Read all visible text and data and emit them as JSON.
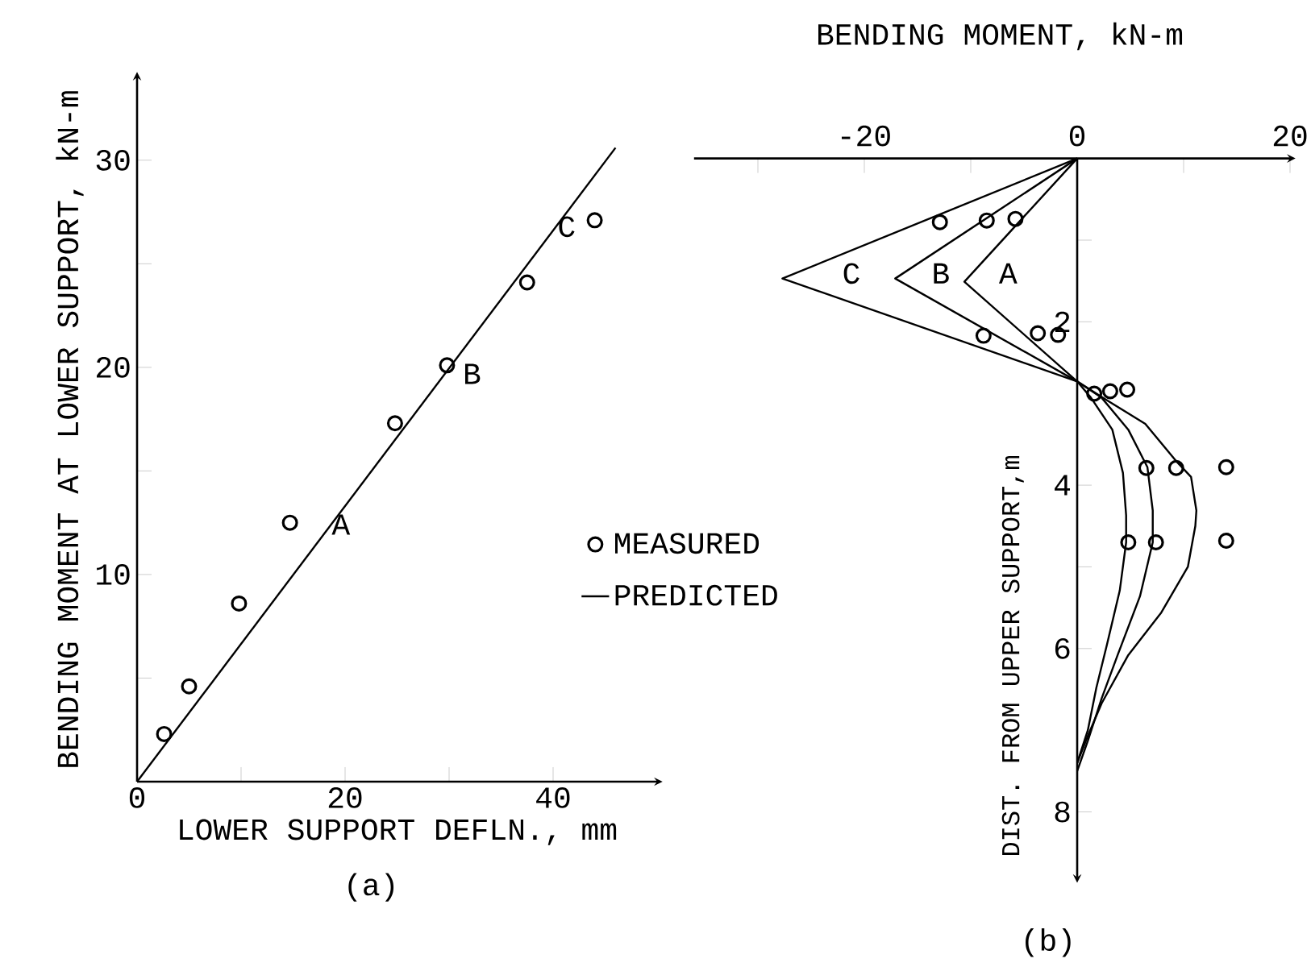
{
  "chart_data": [
    {
      "type": "scatter",
      "xlabel": "LOWER SUPPORT DEFLN., mm",
      "ylabel": "BENDING MOMENT AT LOWER SUPPORT, kN-m",
      "xlim": [
        0,
        50
      ],
      "ylim": [
        0,
        34
      ],
      "xticks": [
        0,
        {
          "value": 10,
          "label": null
        },
        20,
        {
          "value": 30,
          "label": null
        },
        40
      ],
      "yticks": [
        {
          "value": 5,
          "label": null
        },
        10,
        {
          "value": 15,
          "label": null
        },
        20,
        {
          "value": 25,
          "label": null
        },
        30
      ],
      "legend": "right",
      "series": [
        {
          "name": "MEASURED",
          "color": "#000000",
          "marker": "circle",
          "x": [
            2.6,
            5.0,
            9.8,
            14.7,
            24.8,
            29.8,
            37.5,
            44.0
          ],
          "values": [
            2.3,
            4.6,
            8.6,
            12.5,
            17.3,
            20.1,
            24.1,
            27.1
          ]
        },
        {
          "type": "line",
          "name": "PREDICTED",
          "color": "#000000",
          "x": [
            0,
            46
          ],
          "values": [
            0,
            30.6
          ]
        }
      ],
      "annotations": [
        "A",
        "B",
        "C",
        "(a)"
      ]
    },
    {
      "type": "line",
      "xlabel": "BENDING MOMENT, kN-m",
      "ylabel": "DIST. FROM UPPER SUPPORT,m",
      "xlim": [
        -36,
        20
      ],
      "ylim": [
        8.8,
        0
      ],
      "xticks": [
        {
          "value": -30,
          "label": null
        },
        -20,
        {
          "value": -10,
          "label": null
        },
        0,
        {
          "value": 10,
          "label": null
        },
        20
      ],
      "yticks": [
        {
          "value": 1,
          "label": null
        },
        2,
        4,
        {
          "value": 5,
          "label": null
        },
        6,
        8
      ],
      "series": [
        {
          "color": "#000000",
          "x": [
            0,
            -10.6,
            0,
            1.3,
            3.3,
            4.3,
            4.6,
            4.6,
            4.0,
            2.8,
            1.8,
            1.0,
            0
          ],
          "values": [
            0,
            1.51,
            2.73,
            2.93,
            3.32,
            3.85,
            4.37,
            4.7,
            5.29,
            5.95,
            6.48,
            7.0,
            7.4
          ]
        },
        {
          "color": "#000000",
          "x": [
            0,
            -17.1,
            0,
            2.3,
            4.8,
            6.6,
            7.1,
            7.1,
            5.9,
            3.8,
            2.3,
            1.0,
            0
          ],
          "values": [
            0,
            1.47,
            2.73,
            2.93,
            3.32,
            3.78,
            4.31,
            4.7,
            5.36,
            6.08,
            6.61,
            7.13,
            7.5
          ]
        },
        {
          "color": "#000000",
          "x": [
            0,
            -27.7,
            0,
            2.8,
            6.4,
            9.4,
            10.7,
            11.2,
            11.1,
            10.4,
            7.9,
            4.8,
            2.3,
            1.0,
            0
          ],
          "values": [
            0,
            1.47,
            2.73,
            2.96,
            3.25,
            3.72,
            3.9,
            4.31,
            4.5,
            5.0,
            5.56,
            6.08,
            6.67,
            7.07,
            7.4
          ]
        },
        {
          "type": "scatter",
          "color": "#000000",
          "marker": "circle",
          "x": [
            -12.9,
            -8.5,
            -5.8,
            -8.8,
            -3.7,
            -1.8,
            1.6,
            3.1,
            4.7,
            6.5,
            9.3,
            14.0,
            4.8,
            7.4,
            14.0
          ],
          "values": [
            0.78,
            0.76,
            0.74,
            2.17,
            2.14,
            2.16,
            2.88,
            2.85,
            2.83,
            3.79,
            3.79,
            3.78,
            4.7,
            4.7,
            4.68
          ]
        }
      ],
      "annotations": [
        "A",
        "B",
        "C",
        "(b)"
      ]
    }
  ]
}
